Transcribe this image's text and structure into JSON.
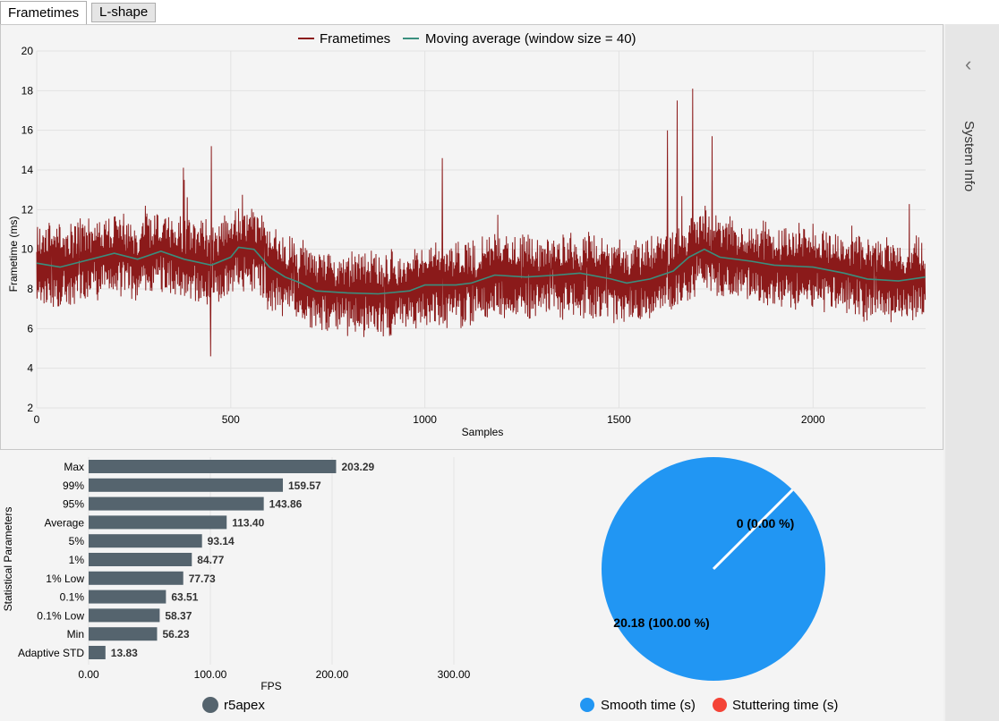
{
  "tabs": [
    {
      "label": "Frametimes",
      "active": true
    },
    {
      "label": "L-shape",
      "active": false
    }
  ],
  "sidebar": {
    "label": "System Info",
    "collapse_icon": "chevron-left-icon"
  },
  "frametime_chart": {
    "chart_data": {
      "type": "line",
      "title": "",
      "xlabel": "Samples",
      "ylabel": "Frametime (ms)",
      "xlim": [
        0,
        2290
      ],
      "ylim": [
        2,
        20
      ],
      "x_ticks": [
        "0",
        "500",
        "1000",
        "1500",
        "2000"
      ],
      "y_ticks": [
        "2",
        "4",
        "6",
        "8",
        "10",
        "12",
        "14",
        "16",
        "18",
        "20"
      ],
      "grid": true,
      "legend": "top-center",
      "series": [
        {
          "name": "Frametimes",
          "color": "#8b1a1a",
          "sample_count": 2290,
          "spikes": [
            {
              "x": 450,
              "y": 15.2
            },
            {
              "x": 448,
              "y": 4.6
            },
            {
              "x": 1045,
              "y": 14.6
            },
            {
              "x": 1625,
              "y": 16.0
            },
            {
              "x": 1650,
              "y": 17.5
            },
            {
              "x": 1690,
              "y": 18.1
            },
            {
              "x": 1740,
              "y": 15.7
            },
            {
              "x": 380,
              "y": 13.5
            }
          ]
        },
        {
          "name": "Moving average (window size = 40)",
          "color": "#3a8f7e",
          "points": [
            {
              "x": 0,
              "y": 9.3
            },
            {
              "x": 60,
              "y": 9.1
            },
            {
              "x": 120,
              "y": 9.4
            },
            {
              "x": 200,
              "y": 9.8
            },
            {
              "x": 260,
              "y": 9.5
            },
            {
              "x": 320,
              "y": 9.9
            },
            {
              "x": 380,
              "y": 9.5
            },
            {
              "x": 450,
              "y": 9.2
            },
            {
              "x": 500,
              "y": 9.6
            },
            {
              "x": 520,
              "y": 10.1
            },
            {
              "x": 560,
              "y": 10.0
            },
            {
              "x": 600,
              "y": 9.1
            },
            {
              "x": 640,
              "y": 8.6
            },
            {
              "x": 680,
              "y": 8.3
            },
            {
              "x": 720,
              "y": 7.9
            },
            {
              "x": 800,
              "y": 7.8
            },
            {
              "x": 880,
              "y": 7.75
            },
            {
              "x": 960,
              "y": 7.9
            },
            {
              "x": 1000,
              "y": 8.2
            },
            {
              "x": 1080,
              "y": 8.2
            },
            {
              "x": 1120,
              "y": 8.3
            },
            {
              "x": 1180,
              "y": 8.7
            },
            {
              "x": 1260,
              "y": 8.6
            },
            {
              "x": 1340,
              "y": 8.7
            },
            {
              "x": 1400,
              "y": 8.8
            },
            {
              "x": 1480,
              "y": 8.5
            },
            {
              "x": 1520,
              "y": 8.3
            },
            {
              "x": 1580,
              "y": 8.5
            },
            {
              "x": 1640,
              "y": 8.9
            },
            {
              "x": 1680,
              "y": 9.6
            },
            {
              "x": 1720,
              "y": 10.0
            },
            {
              "x": 1760,
              "y": 9.6
            },
            {
              "x": 1840,
              "y": 9.4
            },
            {
              "x": 1900,
              "y": 9.2
            },
            {
              "x": 2000,
              "y": 9.1
            },
            {
              "x": 2080,
              "y": 8.8
            },
            {
              "x": 2140,
              "y": 8.5
            },
            {
              "x": 2220,
              "y": 8.4
            },
            {
              "x": 2290,
              "y": 8.6
            }
          ]
        }
      ]
    }
  },
  "stats_chart": {
    "chart_data": {
      "type": "bar",
      "orientation": "horizontal",
      "xlabel": "FPS",
      "ylabel": "Statistical Parameters",
      "xlim": [
        0,
        300
      ],
      "x_ticks": [
        "0.00",
        "100.00",
        "200.00",
        "300.00"
      ],
      "categories": [
        "Max",
        "99%",
        "95%",
        "Average",
        "5%",
        "1%",
        "1% Low",
        "0.1%",
        "0.1% Low",
        "Min",
        "Adaptive STD"
      ],
      "values": [
        203.29,
        159.57,
        143.86,
        113.4,
        93.14,
        84.77,
        77.73,
        63.51,
        58.37,
        56.23,
        13.83
      ],
      "labels": [
        "203.29",
        "159.57",
        "143.86",
        "113.40",
        "93.14",
        "84.77",
        "77.73",
        "63.51",
        "58.37",
        "56.23",
        "13.83"
      ],
      "bar_color": "#55646e",
      "series_name": "r5apex"
    }
  },
  "pie_chart": {
    "chart_data": {
      "type": "pie",
      "slices": [
        {
          "name": "Smooth time (s)",
          "value": 20.18,
          "label": "20.18 (100.00 %)",
          "color": "#2196f3"
        },
        {
          "name": "Stuttering time (s)",
          "value": 0,
          "label": "0 (0.00 %)",
          "color": "#f44336"
        }
      ]
    }
  }
}
